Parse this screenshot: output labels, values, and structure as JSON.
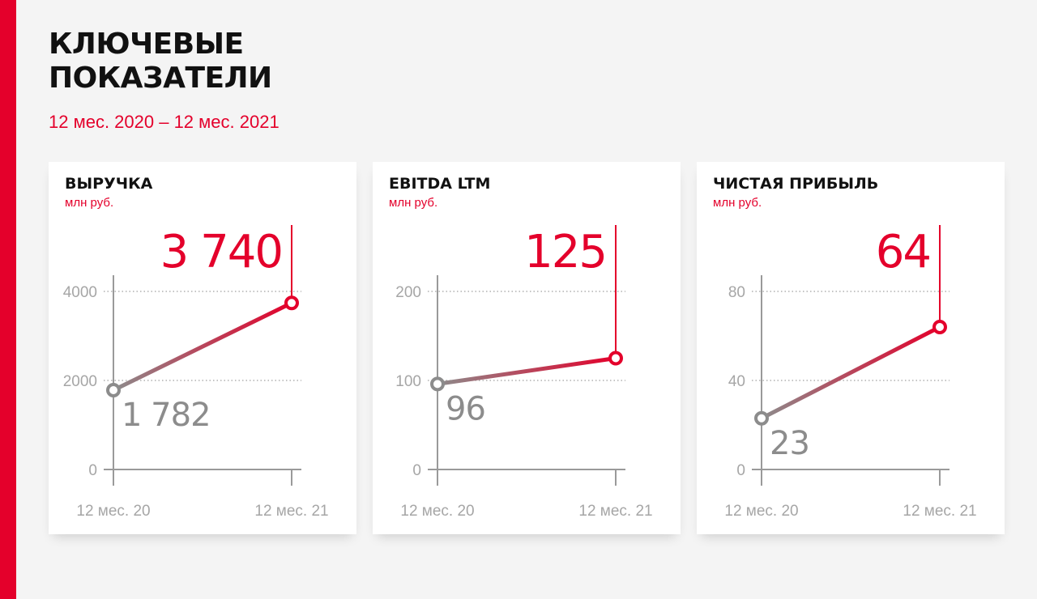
{
  "page": {
    "title_line1": "КЛЮЧЕВЫЕ",
    "title_line2": "ПОКАЗАТЕЛИ",
    "subtitle": "12 мес. 2020 – 12 мес. 2021"
  },
  "colors": {
    "accent": "#e4002b",
    "start_point": "#8c8c8c",
    "axis": "#9a9a9a",
    "grid": "#a0a0a0"
  },
  "chart_data": [
    {
      "type": "line",
      "title": "ВЫРУЧКА",
      "unit": "млн руб.",
      "categories": [
        "12 мес. 20",
        "12 мес. 21"
      ],
      "values": [
        1782,
        3740
      ],
      "value_labels": [
        "1 782",
        "3 740"
      ],
      "yticks": [
        0,
        2000,
        4000
      ],
      "ylim": [
        0,
        4000
      ],
      "grid": true
    },
    {
      "type": "line",
      "title": "EBITDA LTM",
      "unit": "млн руб.",
      "categories": [
        "12 мес. 20",
        "12 мес. 21"
      ],
      "values": [
        96,
        125
      ],
      "value_labels": [
        "96",
        "125"
      ],
      "yticks": [
        0,
        100,
        200
      ],
      "ylim": [
        0,
        200
      ],
      "grid": true
    },
    {
      "type": "line",
      "title": "ЧИСТАЯ ПРИБЫЛЬ",
      "unit": "млн руб.",
      "categories": [
        "12 мес. 20",
        "12 мес. 21"
      ],
      "values": [
        23,
        64
      ],
      "value_labels": [
        "23",
        "64"
      ],
      "yticks": [
        0,
        40,
        80
      ],
      "ylim": [
        0,
        80
      ],
      "grid": true
    }
  ]
}
